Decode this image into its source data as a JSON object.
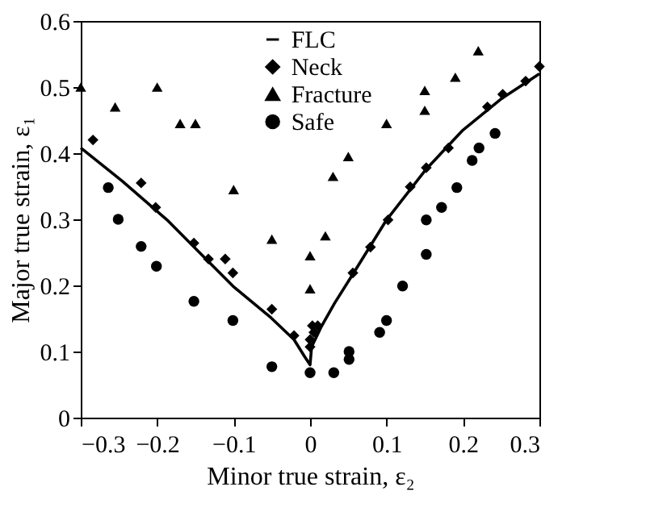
{
  "chart_data": {
    "type": "scatter",
    "xlabel": "Minor true strain, ε₂",
    "ylabel": "Major true strain, ε₁",
    "xlim": [
      -0.3,
      0.3
    ],
    "xticks": [
      -0.3,
      -0.2,
      -0.1,
      0,
      0.1,
      0.2,
      0.3
    ],
    "ylim": [
      0,
      0.6
    ],
    "yticks": [
      0,
      0.1,
      0.2,
      0.3,
      0.4,
      0.5,
      0.6
    ],
    "grid": false,
    "legend": "top right",
    "series": [
      {
        "name": "FLC",
        "type": "line",
        "marker": "none",
        "line_style": "solid",
        "color": "#000000",
        "x": [
          -0.3,
          -0.246,
          -0.187,
          -0.101,
          -0.051,
          -0.021,
          -0.007,
          0,
          0.002,
          0.014,
          0.032,
          0.056,
          0.1,
          0.152,
          0.2,
          0.251,
          0.3
        ],
        "values": [
          0.408,
          0.358,
          0.299,
          0.199,
          0.151,
          0.118,
          0.092,
          0.08,
          0.107,
          0.136,
          0.173,
          0.217,
          0.299,
          0.376,
          0.435,
          0.483,
          0.52
        ]
      },
      {
        "name": "Neck",
        "marker": "diamond",
        "color": "#000000",
        "x": [
          -0.284,
          -0.221,
          -0.202,
          -0.152,
          -0.133,
          -0.111,
          -0.101,
          -0.05,
          -0.021,
          0,
          0,
          0.003,
          0.005,
          0.01,
          0.056,
          0.079,
          0.102,
          0.131,
          0.152,
          0.181,
          0.232,
          0.252,
          0.282,
          0.3
        ],
        "values": [
          0.42,
          0.355,
          0.318,
          0.264,
          0.24,
          0.24,
          0.219,
          0.164,
          0.124,
          0.118,
          0.107,
          0.139,
          0.129,
          0.139,
          0.219,
          0.258,
          0.299,
          0.349,
          0.378,
          0.408,
          0.47,
          0.489,
          0.509,
          0.531
        ]
      },
      {
        "name": "Fracture",
        "marker": "triangle",
        "color": "#000000",
        "x": [
          -0.3,
          -0.255,
          -0.2,
          -0.17,
          -0.15,
          -0.1,
          -0.05,
          0,
          0,
          0.02,
          0.03,
          0.05,
          0.1,
          0.15,
          0.15,
          0.19,
          0.22
        ],
        "values": [
          0.5,
          0.47,
          0.5,
          0.445,
          0.445,
          0.345,
          0.27,
          0.245,
          0.195,
          0.275,
          0.365,
          0.395,
          0.445,
          0.465,
          0.495,
          0.515,
          0.555
        ]
      },
      {
        "name": "Safe",
        "marker": "circle",
        "color": "#000000",
        "x": [
          -0.264,
          -0.251,
          -0.221,
          -0.201,
          -0.152,
          -0.101,
          -0.05,
          0,
          0.031,
          0.051,
          0.051,
          0.091,
          0.1,
          0.121,
          0.152,
          0.152,
          0.172,
          0.192,
          0.212,
          0.221,
          0.242
        ],
        "values": [
          0.348,
          0.3,
          0.259,
          0.229,
          0.176,
          0.147,
          0.077,
          0.068,
          0.068,
          0.1,
          0.088,
          0.129,
          0.147,
          0.199,
          0.247,
          0.299,
          0.318,
          0.348,
          0.389,
          0.408,
          0.43
        ]
      }
    ]
  }
}
